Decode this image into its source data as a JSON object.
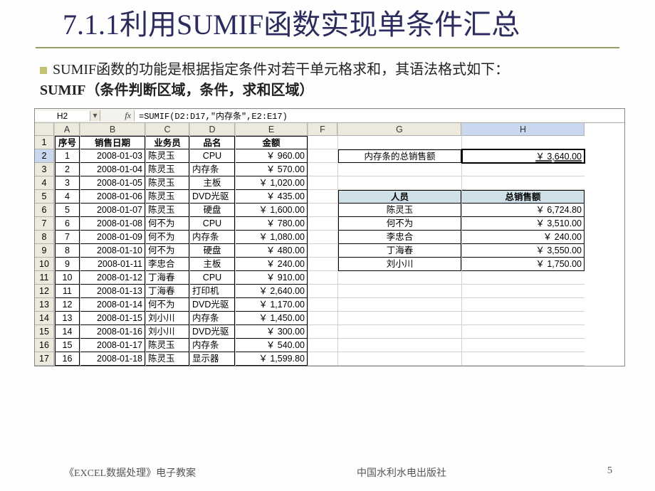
{
  "slide": {
    "title": "7.1.1利用SUMIF函数实现单条件汇总",
    "para1": "SUMIF函数的功能是根据指定条件对若干单元格求和，其语法格式如下：",
    "para2": "SUMIF（条件判断区域，条件，求和区域）"
  },
  "excel": {
    "name_box": "H2",
    "fx_label": "fx",
    "formula": "=SUMIF(D2:D17,\"内存条\",E2:E17)",
    "col_headers": [
      "A",
      "B",
      "C",
      "D",
      "E",
      "F",
      "G",
      "H"
    ],
    "header_row": {
      "seq": "序号",
      "date": "销售日期",
      "rep": "业务员",
      "prod": "品名",
      "amt": "金额"
    },
    "rows": [
      {
        "r": "1"
      },
      {
        "r": "2",
        "seq": "1",
        "date": "2008-01-03",
        "rep": "陈灵玉",
        "prod": "CPU",
        "amt": "￥    960.00"
      },
      {
        "r": "3",
        "seq": "2",
        "date": "2008-01-04",
        "rep": "陈灵玉",
        "prod": "内存条",
        "amt": "￥    570.00"
      },
      {
        "r": "4",
        "seq": "3",
        "date": "2008-01-05",
        "rep": "陈灵玉",
        "prod": "主板",
        "amt": "￥  1,020.00"
      },
      {
        "r": "5",
        "seq": "4",
        "date": "2008-01-06",
        "rep": "陈灵玉",
        "prod": "DVD光驱",
        "amt": "￥    435.00"
      },
      {
        "r": "6",
        "seq": "5",
        "date": "2008-01-07",
        "rep": "陈灵玉",
        "prod": "硬盘",
        "amt": "￥  1,600.00"
      },
      {
        "r": "7",
        "seq": "6",
        "date": "2008-01-08",
        "rep": "何不为",
        "prod": "CPU",
        "amt": "￥    780.00"
      },
      {
        "r": "8",
        "seq": "7",
        "date": "2008-01-09",
        "rep": "何不为",
        "prod": "内存条",
        "amt": "￥  1,080.00"
      },
      {
        "r": "9",
        "seq": "8",
        "date": "2008-01-10",
        "rep": "何不为",
        "prod": "硬盘",
        "amt": "￥    480.00"
      },
      {
        "r": "10",
        "seq": "9",
        "date": "2008-01-11",
        "rep": "李忠合",
        "prod": "主板",
        "amt": "￥    240.00"
      },
      {
        "r": "11",
        "seq": "10",
        "date": "2008-01-12",
        "rep": "丁海春",
        "prod": "CPU",
        "amt": "￥    910.00"
      },
      {
        "r": "12",
        "seq": "11",
        "date": "2008-01-13",
        "rep": "丁海春",
        "prod": "打印机",
        "amt": "￥  2,640.00"
      },
      {
        "r": "13",
        "seq": "12",
        "date": "2008-01-14",
        "rep": "何不为",
        "prod": "DVD光驱",
        "amt": "￥  1,170.00"
      },
      {
        "r": "14",
        "seq": "13",
        "date": "2008-01-15",
        "rep": "刘小川",
        "prod": "内存条",
        "amt": "￥  1,450.00"
      },
      {
        "r": "15",
        "seq": "14",
        "date": "2008-01-16",
        "rep": "刘小川",
        "prod": "DVD光驱",
        "amt": "￥    300.00"
      },
      {
        "r": "16",
        "seq": "15",
        "date": "2008-01-17",
        "rep": "陈灵玉",
        "prod": "内存条",
        "amt": "￥    540.00"
      },
      {
        "r": "17",
        "seq": "16",
        "date": "2008-01-18",
        "rep": "陈灵玉",
        "prod": "显示器",
        "amt": "￥  1,599.80"
      }
    ],
    "sumlabel": "内存条的总销售额",
    "sumvalue": "￥  3,640.00",
    "table2_headers": {
      "person": "人员",
      "total": "总销售额"
    },
    "table2_rows": [
      {
        "p": "陈灵玉",
        "t": "￥  6,724.80"
      },
      {
        "p": "何不为",
        "t": "￥  3,510.00"
      },
      {
        "p": "李忠合",
        "t": "￥    240.00"
      },
      {
        "p": "丁海春",
        "t": "￥  3,550.00"
      },
      {
        "p": "刘小川",
        "t": "￥  1,750.00"
      }
    ]
  },
  "footer": {
    "left": "《EXCEL数据处理》电子教案",
    "center": "中国水利水电出版社",
    "page": "5"
  },
  "colors": {
    "title_color": "#2b2b5e",
    "underline": "#9a9a65",
    "grid_header_bg": "#eceadd",
    "sel_bg": "#c9d8ef",
    "table2_header_bg": "#cfe0e8"
  }
}
